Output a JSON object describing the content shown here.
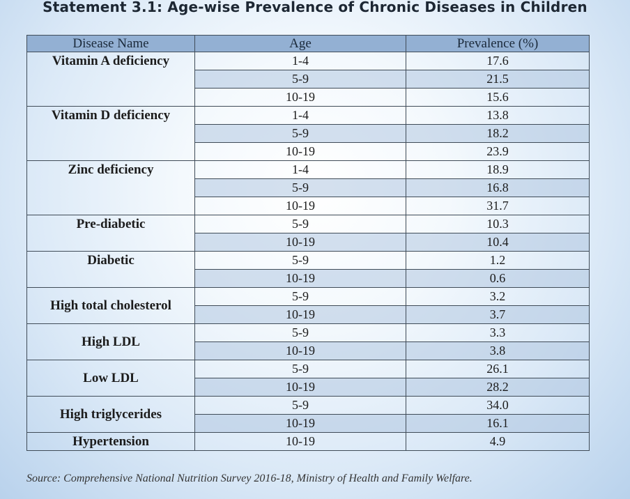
{
  "title": "Statement 3.1: Age-wise Prevalence of Chronic Diseases in Children",
  "table": {
    "headers": [
      "Disease Name",
      "Age",
      "Prevalence (%)"
    ],
    "groups": [
      {
        "disease": "Vitamin A deficiency",
        "rows": [
          [
            "1-4",
            "17.6"
          ],
          [
            "5-9",
            "21.5"
          ],
          [
            "10-19",
            "15.6"
          ]
        ]
      },
      {
        "disease": "Vitamin D deficiency",
        "rows": [
          [
            "1-4",
            "13.8"
          ],
          [
            "5-9",
            "18.2"
          ],
          [
            "10-19",
            "23.9"
          ]
        ]
      },
      {
        "disease": "Zinc deficiency",
        "rows": [
          [
            "1-4",
            "18.9"
          ],
          [
            "5-9",
            "16.8"
          ],
          [
            "10-19",
            "31.7"
          ]
        ]
      },
      {
        "disease": "Pre-diabetic",
        "rows": [
          [
            "5-9",
            "10.3"
          ],
          [
            "10-19",
            "10.4"
          ]
        ]
      },
      {
        "disease": "Diabetic",
        "rows": [
          [
            "5-9",
            "1.2"
          ],
          [
            "10-19",
            "0.6"
          ]
        ]
      },
      {
        "disease": "High total cholesterol",
        "rows": [
          [
            "5-9",
            "3.2"
          ],
          [
            "10-19",
            "3.7"
          ]
        ]
      },
      {
        "disease": "High LDL",
        "rows": [
          [
            "5-9",
            "3.3"
          ],
          [
            "10-19",
            "3.8"
          ]
        ]
      },
      {
        "disease": "Low LDL",
        "rows": [
          [
            "5-9",
            "26.1"
          ],
          [
            "10-19",
            "28.2"
          ]
        ]
      },
      {
        "disease": "High triglycerides",
        "rows": [
          [
            "5-9",
            "34.0"
          ],
          [
            "10-19",
            "16.1"
          ]
        ]
      },
      {
        "disease": "Hypertension",
        "rows": [
          [
            "10-19",
            "4.9"
          ]
        ]
      }
    ]
  },
  "source": "Source: Comprehensive National Nutrition Survey 2016-18, Ministry of Health and Family Welfare."
}
